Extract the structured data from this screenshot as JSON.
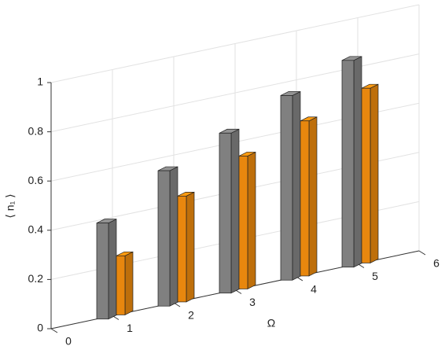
{
  "chart_data": {
    "type": "bar3d",
    "xlabel": "Ω",
    "ylabel": "⟨ n₁ ⟩",
    "x": [
      1,
      2,
      3,
      4,
      5
    ],
    "series": [
      {
        "color": "#808080",
        "values": [
          0.39,
          0.55,
          0.65,
          0.75,
          0.84
        ]
      },
      {
        "color": "#e8870e",
        "values": [
          0.24,
          0.43,
          0.54,
          0.63,
          0.71
        ]
      }
    ],
    "xlim": [
      0,
      6
    ],
    "xticks": [
      0,
      1,
      2,
      3,
      4,
      5,
      6
    ],
    "ylim": [
      0,
      1
    ],
    "yticks": [
      0,
      0.2,
      0.4,
      0.6,
      0.8,
      1
    ],
    "grid": true
  }
}
